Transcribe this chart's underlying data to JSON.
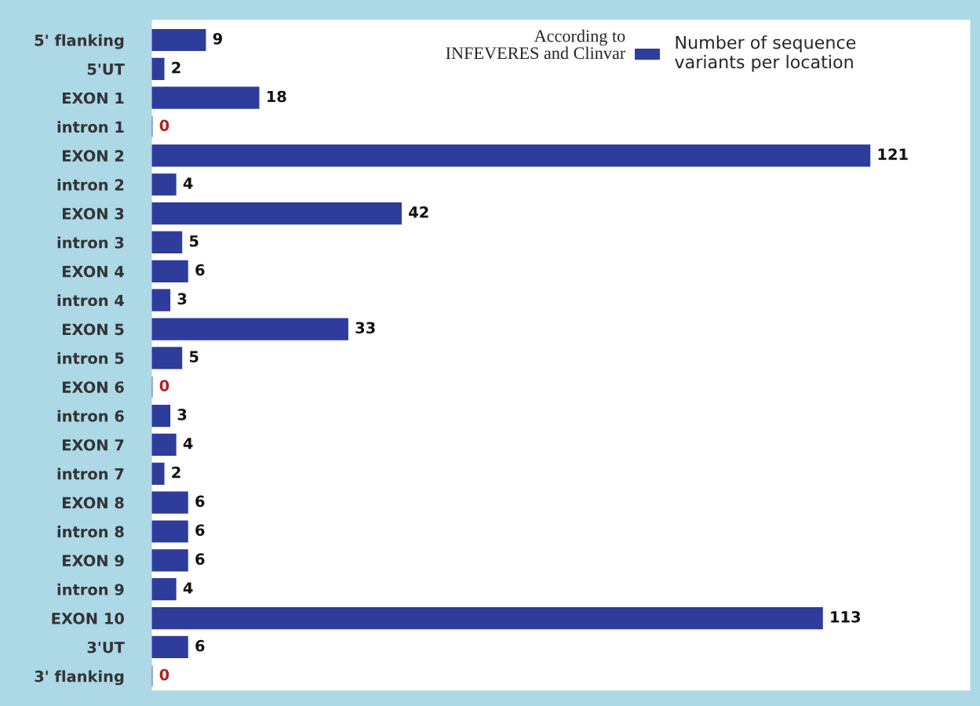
{
  "chart_data": {
    "type": "bar",
    "orientation": "horizontal",
    "categories": [
      "5' flanking",
      "5'UT",
      "EXON 1",
      "intron 1",
      "EXON 2",
      "intron 2",
      "EXON 3",
      "intron 3",
      "EXON 4",
      "intron 4",
      "EXON 5",
      "intron 5",
      "EXON 6",
      "intron 6",
      "EXON 7",
      "intron 7",
      "EXON 8",
      "intron 8",
      "EXON 9",
      "intron 9",
      "EXON 10",
      "3'UT",
      "3' flanking"
    ],
    "series": [
      {
        "name": "Number of sequence variants per location",
        "color": "#2e3c9c",
        "values": [
          9,
          2,
          18,
          0,
          121,
          4,
          42,
          5,
          6,
          3,
          33,
          5,
          0,
          3,
          4,
          2,
          6,
          6,
          6,
          4,
          113,
          6,
          0
        ]
      }
    ],
    "data_labels": true,
    "legend": "top right",
    "grid": false,
    "annotations": [
      "According to INFEVERES and Clinvar"
    ]
  }
}
